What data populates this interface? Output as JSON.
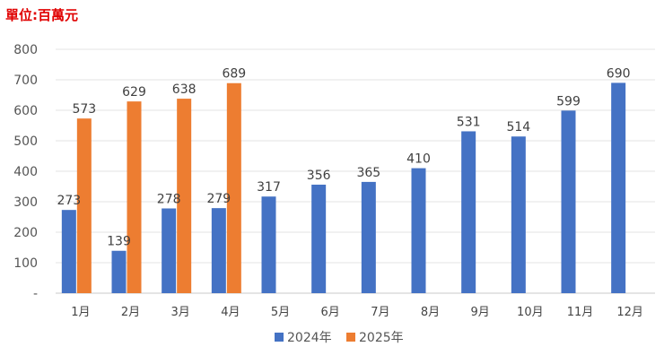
{
  "chart_data": {
    "type": "bar",
    "title": "",
    "unit_label": "單位:百萬元",
    "xlabel": "",
    "ylabel": "",
    "categories": [
      "1月",
      "2月",
      "3月",
      "4月",
      "5月",
      "6月",
      "7月",
      "8月",
      "9月",
      "10月",
      "11月",
      "12月"
    ],
    "series": [
      {
        "name": "2024年",
        "color": "#4472c4",
        "values": [
          273,
          139,
          278,
          279,
          317,
          356,
          365,
          410,
          531,
          514,
          599,
          690
        ]
      },
      {
        "name": "2025年",
        "color": "#ed7d31",
        "values": [
          573,
          629,
          638,
          689,
          null,
          null,
          null,
          null,
          null,
          null,
          null,
          null
        ]
      }
    ],
    "ylim": [
      0,
      800
    ],
    "yticks": [
      0,
      100,
      200,
      300,
      400,
      500,
      600,
      700,
      800
    ],
    "ytick_labels": [
      "-",
      "100",
      "200",
      "300",
      "400",
      "500",
      "600",
      "700",
      "800"
    ],
    "grid": true,
    "legend_position": "bottom"
  }
}
